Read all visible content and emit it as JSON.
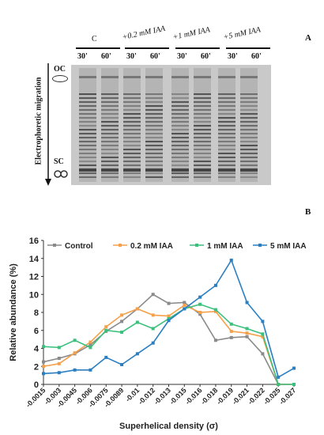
{
  "panel_a": {
    "letter": "A",
    "conditions": [
      {
        "label": "C",
        "times": [
          "30'",
          "60'"
        ]
      },
      {
        "label": "+0.2 mM IAA",
        "times": [
          "30'",
          "60'"
        ]
      },
      {
        "label": "+1 mM IAA",
        "times": [
          "30'",
          "60'"
        ]
      },
      {
        "label": "+5 mM IAA",
        "times": [
          "30'",
          "60'"
        ]
      }
    ],
    "oc_label": "OC",
    "sc_label": "SC",
    "migration_label": "Electrophoretic migration"
  },
  "panel_b": {
    "letter": "B"
  },
  "chart_data": {
    "type": "line",
    "xlabel": "Superhelical density (σ)",
    "ylabel": "Relative abundance (%)",
    "ylim": [
      0,
      16
    ],
    "yticks": [
      0,
      2,
      4,
      6,
      8,
      10,
      12,
      14,
      16
    ],
    "categories": [
      "-0.0015",
      "-0.003",
      "-0.0045",
      "-0.006",
      "-0.0075",
      "-0.0089",
      "-0.01",
      "-0.012",
      "-0.013",
      "-0.015",
      "-0.016",
      "-0.018",
      "-0.019",
      "-0.021",
      "-0.022",
      "-0.025",
      "-0.027"
    ],
    "legend_position": "top",
    "grid": false,
    "series": [
      {
        "name": "Control",
        "color": "#8a8a8a",
        "values": [
          2.5,
          2.9,
          3.4,
          4.4,
          5.9,
          7.0,
          8.4,
          10.0,
          9.0,
          9.1,
          7.8,
          4.9,
          5.2,
          5.3,
          3.4,
          0.0,
          0.0
        ]
      },
      {
        "name": "0.2 mM IAA",
        "color": "#f5a04a",
        "values": [
          2.0,
          2.3,
          3.5,
          4.7,
          6.4,
          7.7,
          8.4,
          7.7,
          7.6,
          8.8,
          8.0,
          8.1,
          5.9,
          5.7,
          5.3,
          0.0,
          0.0
        ]
      },
      {
        "name": "1 mM IAA",
        "color": "#3cc07e",
        "values": [
          4.2,
          4.1,
          4.9,
          4.1,
          6.0,
          5.8,
          6.9,
          6.2,
          7.3,
          8.4,
          8.9,
          8.3,
          6.7,
          6.2,
          5.6,
          0.0,
          0.0
        ]
      },
      {
        "name": "5 mM IAA",
        "color": "#2a7fc2",
        "values": [
          1.2,
          1.3,
          1.6,
          1.6,
          3.0,
          2.2,
          3.4,
          4.6,
          7.1,
          8.4,
          9.7,
          11.0,
          13.8,
          9.1,
          7.0,
          0.8,
          1.8
        ]
      }
    ]
  }
}
